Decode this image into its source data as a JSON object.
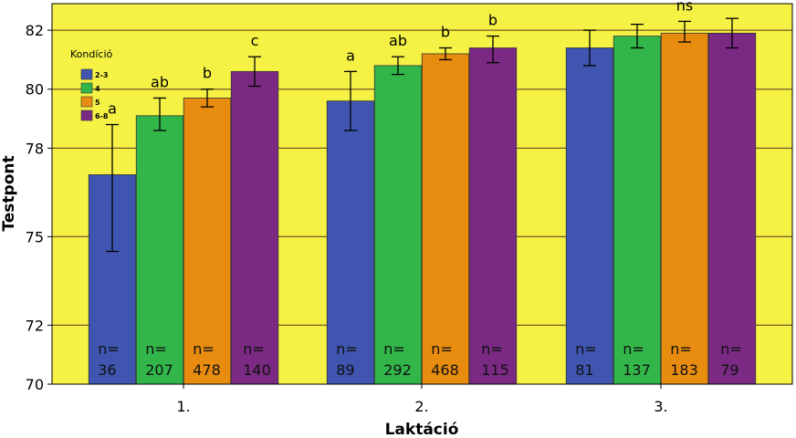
{
  "chart_data": {
    "type": "bar",
    "xlabel": "Laktáció",
    "ylabel": "Testpont",
    "ylim": [
      70,
      82.9
    ],
    "yticks": [
      70,
      72,
      75,
      78,
      80,
      82
    ],
    "ytick_labels": [
      "70",
      "72",
      "75",
      "78",
      "80",
      "82"
    ],
    "categories": [
      "1.",
      "2.",
      "3."
    ],
    "grid": true,
    "legend": {
      "title": "Kondíció",
      "position": "top-left"
    },
    "colors": {
      "plot_background": "#f5f245",
      "grid": "#7a5a2a",
      "error_bar": "#000000"
    },
    "series": [
      {
        "name": "2-3",
        "color": "#3f55b0",
        "values": [
          77.1,
          79.6,
          81.4
        ],
        "error_low": [
          74.5,
          78.6,
          80.8
        ],
        "error_high": [
          78.8,
          80.6,
          82.0
        ],
        "n": [
          "36",
          "89",
          "81"
        ],
        "sig": [
          "a",
          "a",
          ""
        ]
      },
      {
        "name": "4",
        "color": "#32b64a",
        "values": [
          79.1,
          80.8,
          81.8
        ],
        "error_low": [
          78.6,
          80.5,
          81.4
        ],
        "error_high": [
          79.7,
          81.1,
          82.2
        ],
        "n": [
          "207",
          "292",
          "137"
        ],
        "sig": [
          "ab",
          "ab",
          ""
        ]
      },
      {
        "name": "5",
        "color": "#e88c10",
        "values": [
          79.7,
          81.2,
          81.9
        ],
        "error_low": [
          79.4,
          81.0,
          81.6
        ],
        "error_high": [
          80.0,
          81.4,
          82.3
        ],
        "n": [
          "478",
          "468",
          "183"
        ],
        "sig": [
          "b",
          "b",
          "ns"
        ]
      },
      {
        "name": "6-8",
        "color": "#7a2a82",
        "values": [
          80.6,
          81.4,
          81.9
        ],
        "error_low": [
          80.1,
          80.9,
          81.4
        ],
        "error_high": [
          81.1,
          81.8,
          82.4
        ],
        "n": [
          "140",
          "115",
          "79"
        ],
        "sig": [
          "c",
          "b",
          ""
        ]
      }
    ],
    "n_prefix": "n="
  }
}
